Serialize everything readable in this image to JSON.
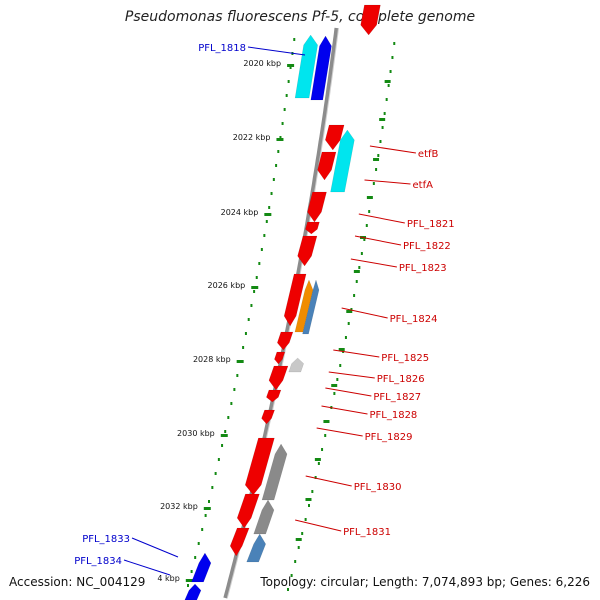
{
  "title": "Pseudomonas fluorescens Pf-5, complete genome",
  "footer": {
    "accession": "Accession: NC_004129",
    "topology": "Topology: circular; Length: 7,074,893 bp; Genes: 6,226"
  },
  "colors": {
    "forward_strand": "#0000ee",
    "reverse_strand": "#ee0000",
    "cyan": "#00e5ee",
    "orange": "#f08c00",
    "steel": "#4a82b8",
    "grey": "#8a8a8a",
    "light_grey": "#c8c8c8",
    "tick": "#138a13",
    "backbone": "#8c8c8c",
    "label_blue": "#0000cc",
    "label_red": "#cc0000"
  },
  "ruler": {
    "labels": [
      "2020 kbp",
      "2022 kbp",
      "2024 kbp",
      "2026 kbp",
      "2028 kbp",
      "2030 kbp",
      "2032 kbp",
      "4 kbp"
    ]
  },
  "genes": {
    "left_labels": [
      "PFL_1818",
      "PFL_1833",
      "PFL_1834"
    ],
    "right_labels": [
      "etfB",
      "etfA",
      "PFL_1821",
      "PFL_1822",
      "PFL_1823",
      "PFL_1824",
      "PFL_1825",
      "PFL_1826",
      "PFL_1827",
      "PFL_1828",
      "PFL_1829",
      "PFL_1830",
      "PFL_1831"
    ]
  }
}
